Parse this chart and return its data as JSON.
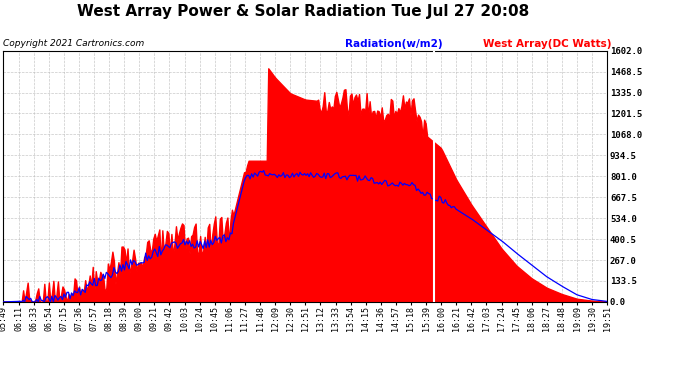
{
  "title": "West Array Power & Solar Radiation Tue Jul 27 20:08",
  "copyright": "Copyright 2021 Cartronics.com",
  "legend_radiation": "Radiation(w/m2)",
  "legend_west": "West Array(DC Watts)",
  "yticks": [
    0.0,
    133.5,
    267.0,
    400.5,
    534.0,
    667.5,
    801.0,
    934.5,
    1068.0,
    1201.5,
    1335.0,
    1468.5,
    1602.0
  ],
  "ymax": 1602.0,
  "ymin": 0.0,
  "bg_color": "#ffffff",
  "plot_bg_color": "#ffffff",
  "grid_color": "#bbbbbb",
  "red_color": "#ff0000",
  "blue_color": "#0000ff",
  "title_fontsize": 11,
  "tick_fontsize": 6,
  "x_labels": [
    "05:49",
    "06:11",
    "06:33",
    "06:54",
    "07:15",
    "07:36",
    "07:57",
    "08:18",
    "08:39",
    "09:00",
    "09:21",
    "09:42",
    "10:03",
    "10:24",
    "10:45",
    "11:06",
    "11:27",
    "11:48",
    "12:09",
    "12:30",
    "12:51",
    "13:12",
    "13:33",
    "13:54",
    "14:15",
    "14:36",
    "14:57",
    "15:18",
    "15:39",
    "16:00",
    "16:21",
    "16:42",
    "17:03",
    "17:24",
    "17:45",
    "18:06",
    "18:27",
    "18:48",
    "19:09",
    "19:30",
    "19:51"
  ],
  "west_array_key_values": [
    0,
    5,
    10,
    20,
    40,
    80,
    130,
    200,
    250,
    290,
    340,
    390,
    430,
    380,
    430,
    460,
    850,
    1560,
    1430,
    1330,
    1290,
    1280,
    1310,
    1260,
    1270,
    1200,
    1240,
    1260,
    1060,
    980,
    780,
    620,
    480,
    340,
    230,
    150,
    90,
    50,
    20,
    8,
    2
  ],
  "radiation_key_values": [
    0,
    3,
    8,
    15,
    30,
    65,
    120,
    175,
    225,
    265,
    310,
    350,
    380,
    360,
    390,
    410,
    790,
    820,
    815,
    800,
    810,
    800,
    805,
    790,
    785,
    760,
    750,
    745,
    690,
    650,
    590,
    530,
    460,
    390,
    310,
    235,
    160,
    100,
    45,
    15,
    3
  ],
  "vline_index": 28.5,
  "noise_seed": 7
}
